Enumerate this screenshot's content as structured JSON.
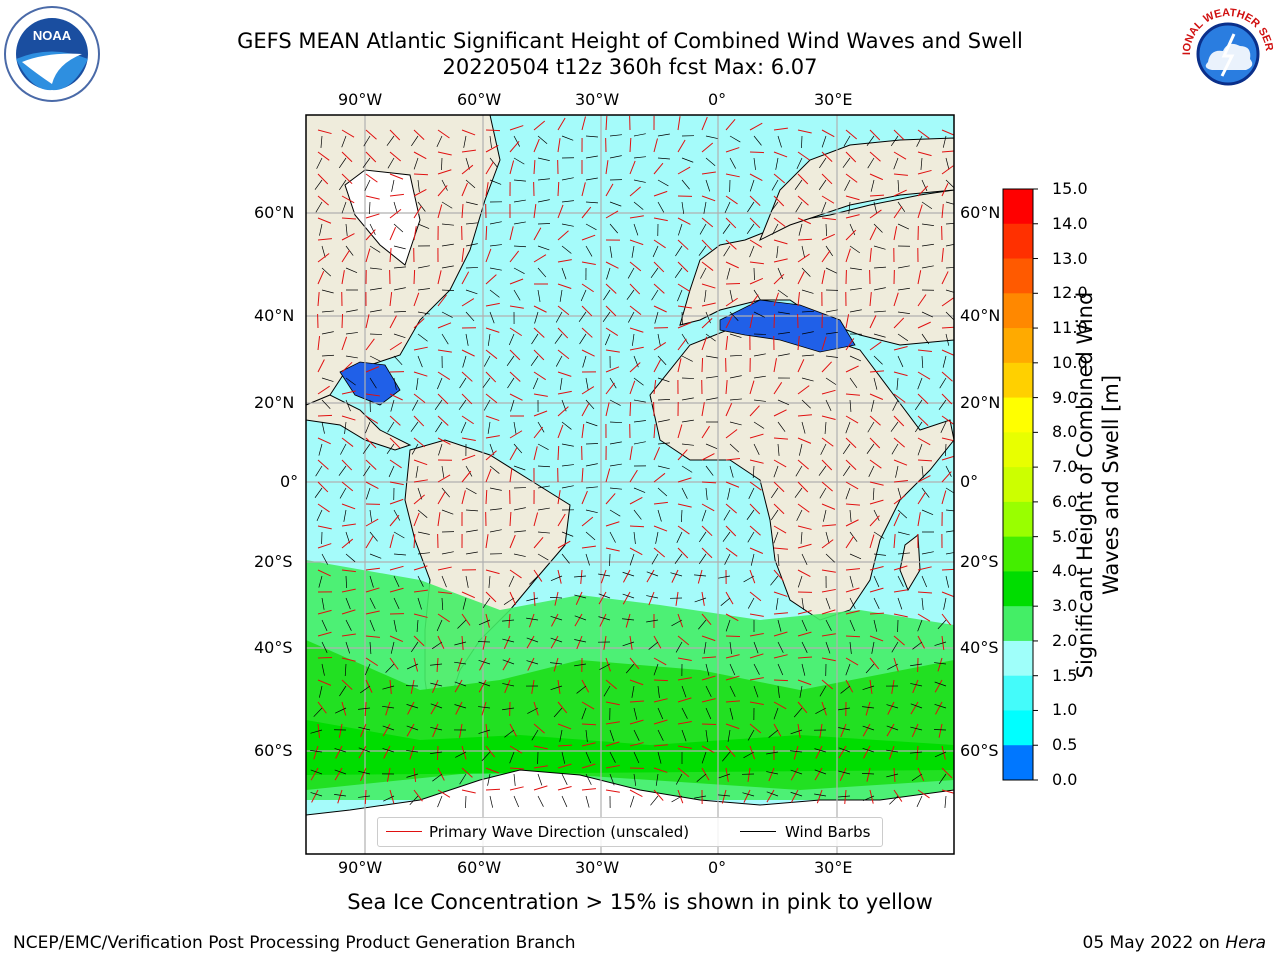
{
  "header": {
    "title_line1": "GEFS MEAN Atlantic Significant Height of Combined Wind Waves and Swell",
    "title_line2": "20220504 t12z 360h fcst   Max: 6.07"
  },
  "logos": {
    "left": "NOAA",
    "right": "NATIONAL WEATHER SERVICE"
  },
  "map": {
    "lon_labels": [
      "90°W",
      "60°W",
      "30°W",
      "0°",
      "30°E"
    ],
    "lat_labels": [
      "60°N",
      "40°N",
      "20°N",
      "0°",
      "20°S",
      "40°S",
      "60°S"
    ],
    "colors": {
      "land": "#efecdc",
      "ice_free_ocean": "#a5fbfa",
      "ice": "#ffffff",
      "grid": "#b0b0b0",
      "arrows": "#e01010",
      "barbs": "#000000"
    }
  },
  "legend": {
    "wave_direction": "Primary Wave Direction (unscaled)",
    "wind_barbs": "Wind Barbs"
  },
  "colorbar": {
    "label": "Significant Height of Combined Wind Waves and Swell [m]",
    "ticks": [
      "15.0",
      "14.0",
      "13.0",
      "12.0",
      "11.0",
      "10.0",
      "9.0",
      "8.0",
      "7.0",
      "6.0",
      "5.0",
      "4.0",
      "3.0",
      "2.0",
      "1.5",
      "1.0",
      "0.5",
      "0.0"
    ],
    "colors": [
      "#ff0000",
      "#ff3000",
      "#ff5a00",
      "#ff8800",
      "#ffaa00",
      "#ffd000",
      "#ffff00",
      "#e8ff00",
      "#ccff00",
      "#99ff00",
      "#44ee00",
      "#00dd00",
      "#44ee66",
      "#9ffffa",
      "#44fbfa",
      "#00ffff",
      "#0077ff",
      "#0000ff"
    ]
  },
  "footer": {
    "ice_note": "Sea Ice Concentration > 15% is shown in pink to yellow",
    "branch": "NCEP/EMC/Verification Post Processing Product Generation Branch",
    "date": "05 May 2022 on ",
    "machine": "Hera"
  }
}
